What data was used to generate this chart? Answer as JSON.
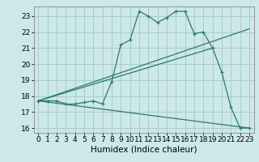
{
  "title": "",
  "xlabel": "Humidex (Indice chaleur)",
  "ylabel": "",
  "bg_color": "#cce8e8",
  "line_color": "#2d7a6e",
  "grid_color": "#aacccc",
  "xlim": [
    -0.5,
    23.5
  ],
  "ylim": [
    15.7,
    23.6
  ],
  "yticks": [
    16,
    17,
    18,
    19,
    20,
    21,
    22,
    23
  ],
  "xticks": [
    0,
    1,
    2,
    3,
    4,
    5,
    6,
    7,
    8,
    9,
    10,
    11,
    12,
    13,
    14,
    15,
    16,
    17,
    18,
    19,
    20,
    21,
    22,
    23
  ],
  "series1_x": [
    0,
    1,
    2,
    3,
    4,
    5,
    6,
    7,
    8,
    9,
    10,
    11,
    12,
    13,
    14,
    15,
    16,
    17,
    18,
    19,
    20,
    21,
    22,
    23
  ],
  "series1_y": [
    17.7,
    17.7,
    17.7,
    17.5,
    17.5,
    17.6,
    17.7,
    17.5,
    18.9,
    21.2,
    21.5,
    23.3,
    23.0,
    22.6,
    22.9,
    23.3,
    23.3,
    21.9,
    22.0,
    21.0,
    19.5,
    17.3,
    16.0,
    16.0
  ],
  "series2_x": [
    0,
    23
  ],
  "series2_y": [
    17.7,
    22.2
  ],
  "series3_x": [
    0,
    19
  ],
  "series3_y": [
    17.7,
    21.0
  ],
  "series4_x": [
    0,
    23
  ],
  "series4_y": [
    17.7,
    16.0
  ],
  "tick_fontsize": 6.5,
  "xlabel_fontsize": 7.5
}
